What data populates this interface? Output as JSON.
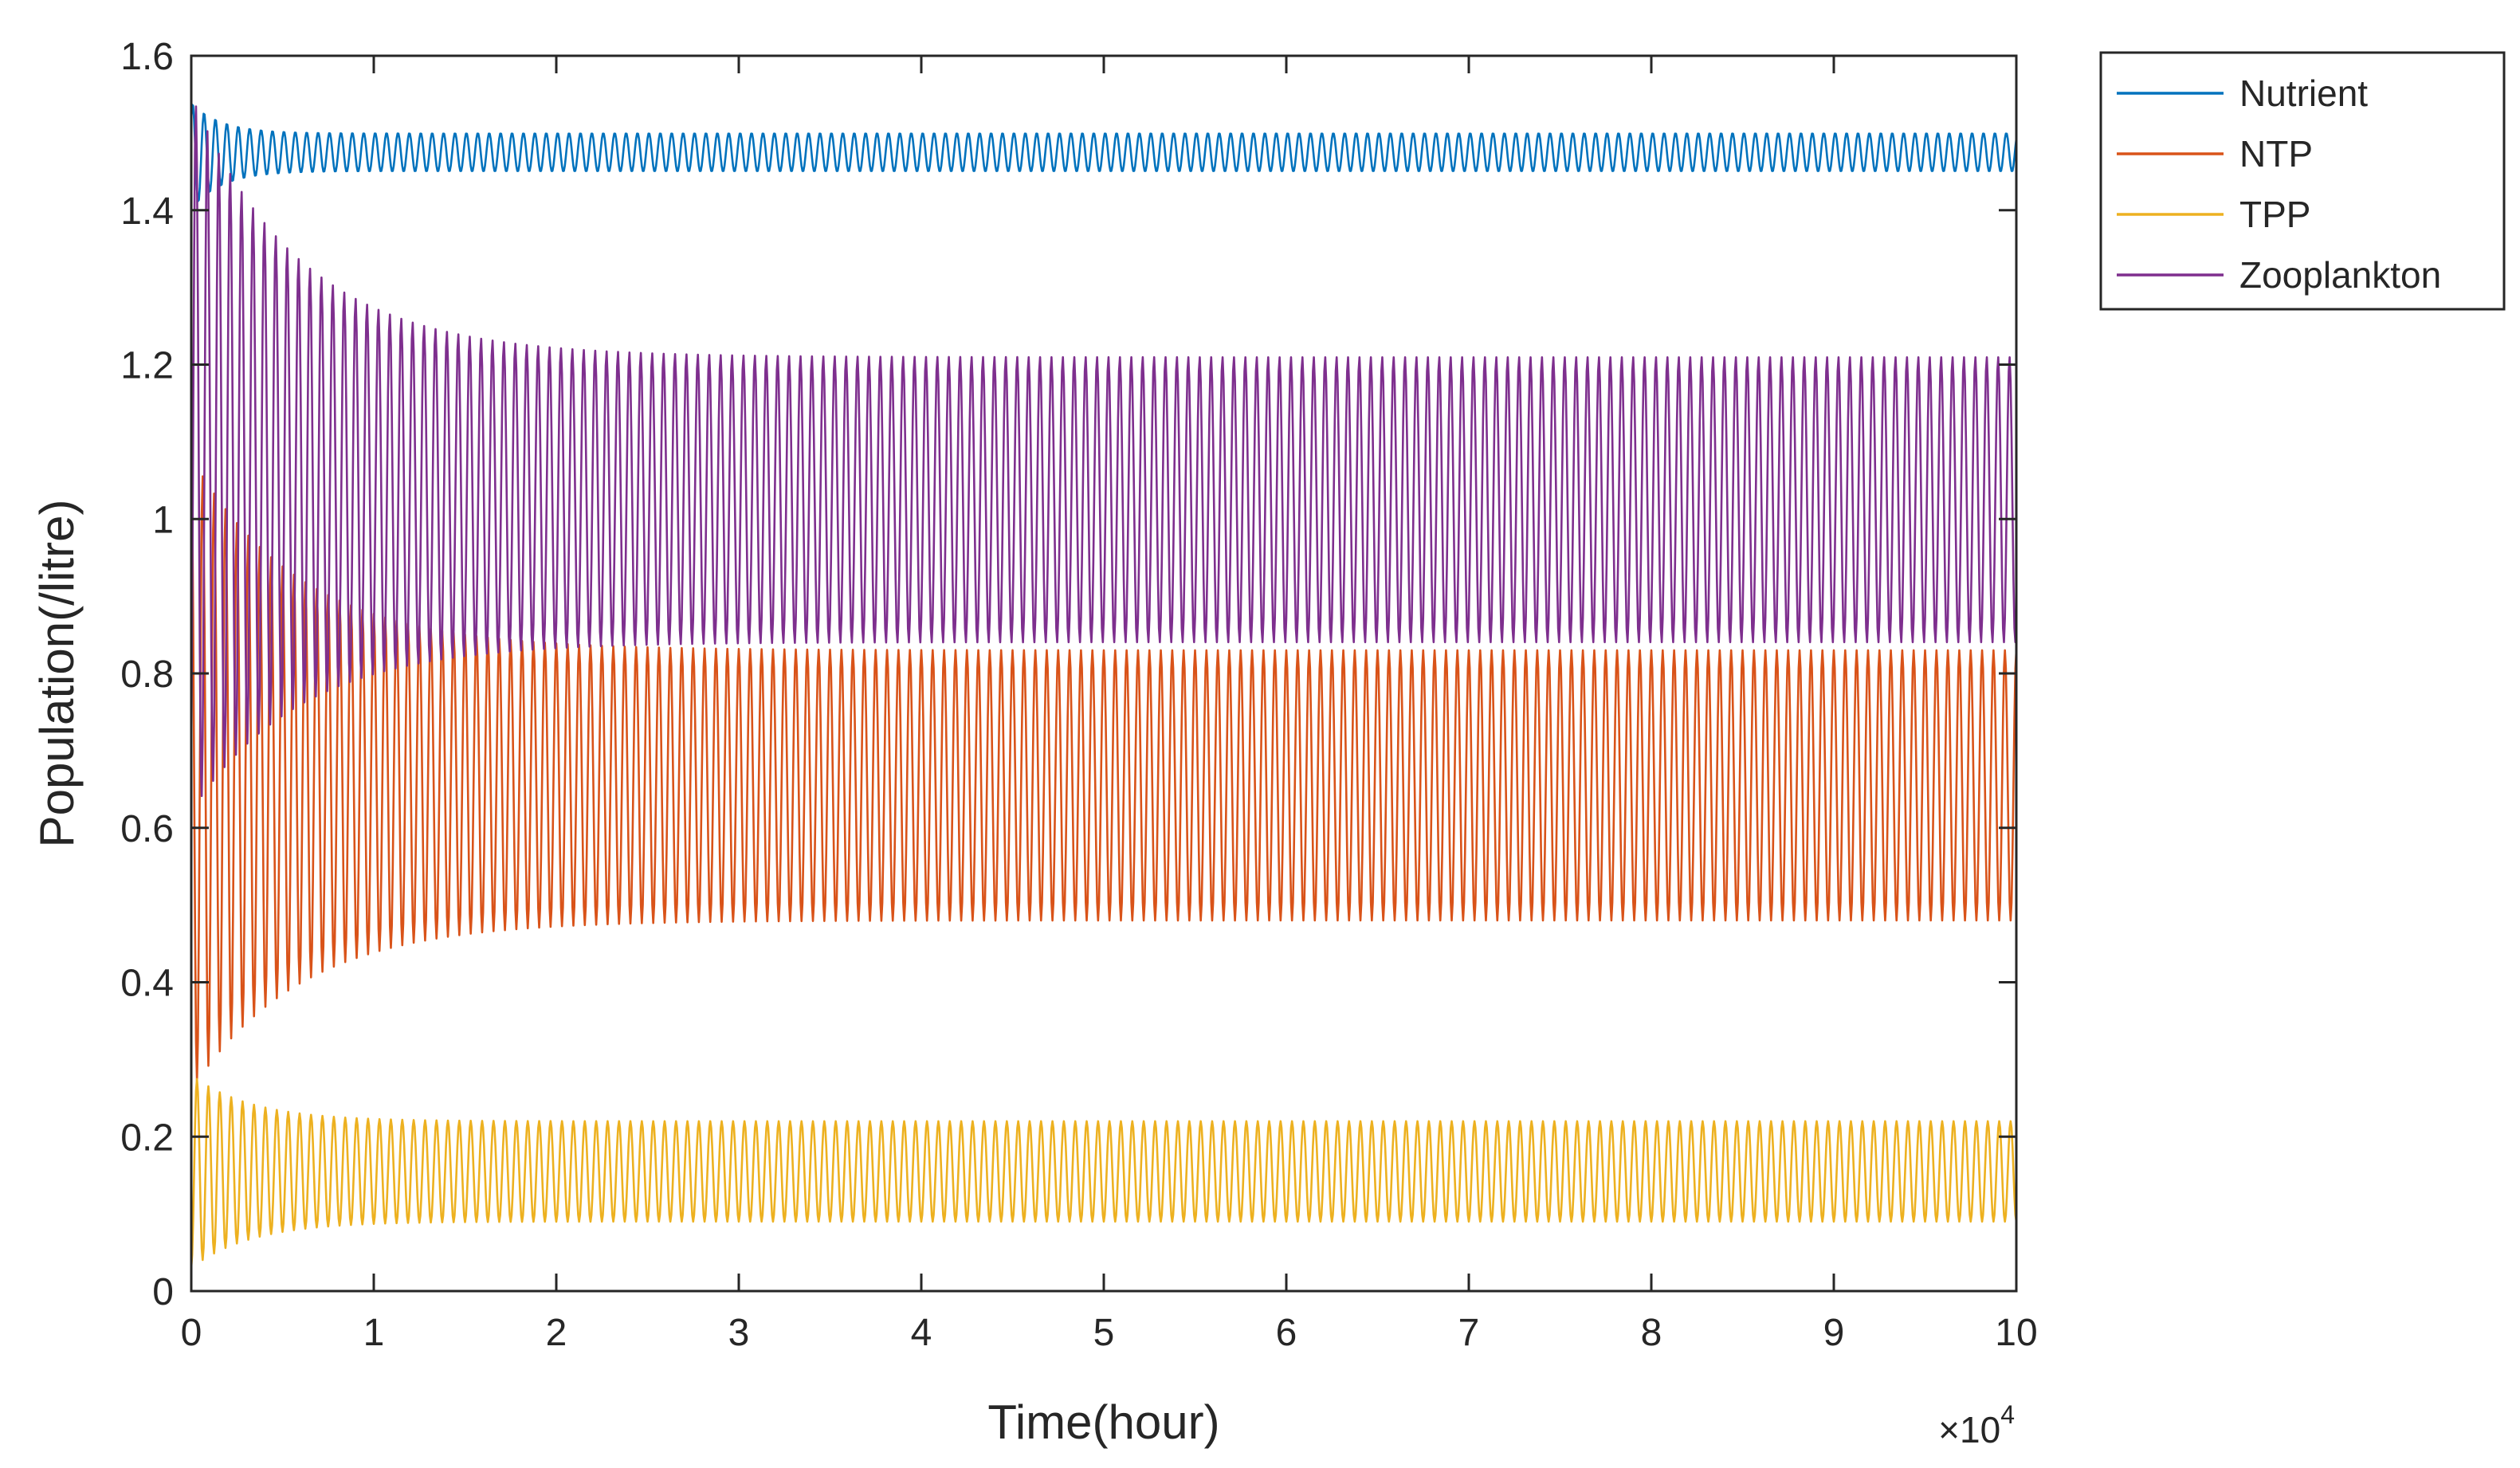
{
  "chart_data": {
    "type": "line",
    "title": "",
    "xlabel": "Time(hour)",
    "ylabel": "Population(/litre)",
    "xlim": [
      0,
      10
    ],
    "ylim": [
      0,
      1.6
    ],
    "x_scale_exponent": {
      "base": "×10",
      "exp": "4"
    },
    "x_ticks": [
      "0",
      "1",
      "2",
      "3",
      "4",
      "5",
      "6",
      "7",
      "8",
      "9",
      "10"
    ],
    "y_ticks": [
      "0",
      "0.2",
      "0.4",
      "0.6",
      "0.8",
      "1",
      "1.2",
      "1.4",
      "1.6"
    ],
    "grid": false,
    "legend_position": "outside-top-right",
    "oscillation_cycles": 160,
    "series": [
      {
        "name": "Nutrient",
        "color": "#0072BD",
        "initial": 1.52,
        "steady_min": 1.45,
        "steady_max": 1.5,
        "first_min": 1.4,
        "first_max": 1.54,
        "settle_time": 0.5
      },
      {
        "name": "NTP",
        "color": "#D95319",
        "initial": 1.1,
        "steady_min": 0.48,
        "steady_max": 0.83,
        "first_min": 0.26,
        "first_max": 1.08,
        "settle_time": 1.8
      },
      {
        "name": "TPP",
        "color": "#EDB120",
        "initial": 0.03,
        "steady_min": 0.09,
        "steady_max": 0.22,
        "first_min": 0.03,
        "first_max": 0.28,
        "settle_time": 1.0
      },
      {
        "name": "Zooplankton",
        "color": "#7E2F8E",
        "initial": 0.7,
        "steady_min": 0.84,
        "steady_max": 1.21,
        "first_min": 0.62,
        "first_max": 1.55,
        "settle_time": 1.8
      }
    ]
  }
}
